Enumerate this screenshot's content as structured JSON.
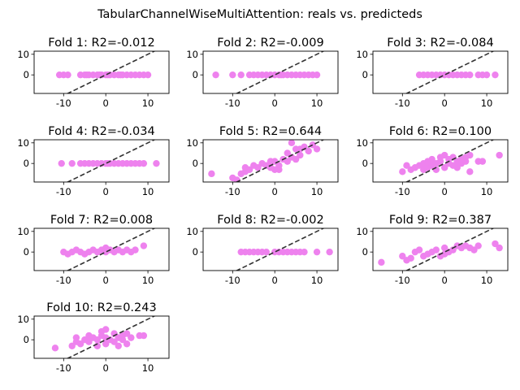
{
  "figure": {
    "title": "TabularChannelWiseMultiAttention: reals vs. predicteds",
    "point_color": "#ee82ee",
    "diagonal_color": "#333333"
  },
  "chart_data": [
    {
      "type": "scatter",
      "title": "Fold 1: R2=-0.012",
      "xlim": [
        -17,
        15
      ],
      "ylim": [
        -9,
        11.5
      ],
      "xticks": [
        "-10",
        "0",
        "10"
      ],
      "xtick_values": [
        -10,
        0,
        10
      ],
      "yticks": [
        "0",
        "10"
      ],
      "ytick_values": [
        0,
        10
      ],
      "diagonal": true,
      "points": [
        [
          -11,
          0
        ],
        [
          -10,
          0
        ],
        [
          -9,
          0
        ],
        [
          -6,
          0
        ],
        [
          -5,
          0
        ],
        [
          -4.5,
          0
        ],
        [
          -4,
          0
        ],
        [
          -3,
          0
        ],
        [
          -2,
          0
        ],
        [
          -1.5,
          0
        ],
        [
          -1,
          0
        ],
        [
          0,
          0
        ],
        [
          0.5,
          0
        ],
        [
          1,
          0
        ],
        [
          2,
          0
        ],
        [
          3,
          0
        ],
        [
          3.5,
          0
        ],
        [
          4,
          0
        ],
        [
          5,
          0
        ],
        [
          6,
          0
        ],
        [
          7,
          0
        ],
        [
          8,
          0
        ],
        [
          9,
          0
        ],
        [
          10,
          0
        ]
      ]
    },
    {
      "type": "scatter",
      "title": "Fold 2: R2=-0.009",
      "xlim": [
        -17,
        15
      ],
      "ylim": [
        -9,
        11.5
      ],
      "xticks": [
        "-10",
        "0",
        "10"
      ],
      "xtick_values": [
        -10,
        0,
        10
      ],
      "yticks": [
        "0",
        "10"
      ],
      "ytick_values": [
        0,
        10
      ],
      "diagonal": true,
      "points": [
        [
          -14,
          0
        ],
        [
          -10,
          0
        ],
        [
          -8,
          0
        ],
        [
          -6,
          0
        ],
        [
          -5,
          0
        ],
        [
          -4,
          0
        ],
        [
          -3,
          0
        ],
        [
          -2,
          0
        ],
        [
          -1,
          0
        ],
        [
          0,
          0
        ],
        [
          1,
          0
        ],
        [
          1.5,
          0
        ],
        [
          2,
          0
        ],
        [
          3,
          0
        ],
        [
          4,
          0
        ],
        [
          5,
          0
        ],
        [
          6,
          0
        ],
        [
          7,
          0
        ],
        [
          8,
          0
        ],
        [
          9,
          0
        ],
        [
          10,
          0
        ]
      ]
    },
    {
      "type": "scatter",
      "title": "Fold 3: R2=-0.084",
      "xlim": [
        -17,
        15
      ],
      "ylim": [
        -9,
        11.5
      ],
      "xticks": [
        "-10",
        "0",
        "10"
      ],
      "xtick_values": [
        -10,
        0,
        10
      ],
      "yticks": [
        "0",
        "10"
      ],
      "ytick_values": [
        0,
        10
      ],
      "diagonal": true,
      "points": [
        [
          -6,
          0
        ],
        [
          -5,
          0
        ],
        [
          -4,
          0
        ],
        [
          -3,
          0
        ],
        [
          -2,
          0
        ],
        [
          -1,
          0
        ],
        [
          0,
          0
        ],
        [
          1,
          0
        ],
        [
          2,
          0
        ],
        [
          3,
          0
        ],
        [
          4,
          0
        ],
        [
          5,
          0
        ],
        [
          6,
          0
        ],
        [
          8,
          0
        ],
        [
          9,
          0
        ],
        [
          10,
          0
        ],
        [
          12,
          0
        ]
      ]
    },
    {
      "type": "scatter",
      "title": "Fold 4: R2=-0.034",
      "xlim": [
        -17,
        15
      ],
      "ylim": [
        -9,
        11.5
      ],
      "xticks": [
        "-10",
        "0",
        "10"
      ],
      "xtick_values": [
        -10,
        0,
        10
      ],
      "yticks": [
        "0",
        "10"
      ],
      "ytick_values": [
        0,
        10
      ],
      "diagonal": true,
      "points": [
        [
          -10.5,
          0
        ],
        [
          -8,
          0
        ],
        [
          -6,
          0
        ],
        [
          -5,
          0
        ],
        [
          -4,
          0
        ],
        [
          -3,
          0
        ],
        [
          -2,
          0
        ],
        [
          -1,
          0
        ],
        [
          0,
          0
        ],
        [
          0.5,
          0
        ],
        [
          1,
          0
        ],
        [
          2,
          0
        ],
        [
          3,
          0
        ],
        [
          4,
          0
        ],
        [
          5,
          0
        ],
        [
          6,
          0
        ],
        [
          7,
          0
        ],
        [
          8,
          0
        ],
        [
          9,
          0
        ],
        [
          12,
          0
        ]
      ]
    },
    {
      "type": "scatter",
      "title": "Fold 5: R2=0.644",
      "xlim": [
        -17,
        15
      ],
      "ylim": [
        -9,
        11.5
      ],
      "xticks": [
        "-10",
        "0",
        "10"
      ],
      "xtick_values": [
        -10,
        0,
        10
      ],
      "yticks": [
        "0",
        "10"
      ],
      "ytick_values": [
        0,
        10
      ],
      "diagonal": true,
      "points": [
        [
          -15,
          -5
        ],
        [
          -10,
          -7
        ],
        [
          -9,
          -8
        ],
        [
          -8,
          -5
        ],
        [
          -7,
          -4
        ],
        [
          -7,
          -2
        ],
        [
          -6,
          -3
        ],
        [
          -5,
          -1
        ],
        [
          -4,
          -2
        ],
        [
          -3,
          0
        ],
        [
          -2,
          -1
        ],
        [
          -1,
          1
        ],
        [
          -1,
          -2
        ],
        [
          0,
          -3
        ],
        [
          0,
          1
        ],
        [
          1,
          -1
        ],
        [
          1,
          -3
        ],
        [
          2,
          2
        ],
        [
          3,
          1
        ],
        [
          3,
          5
        ],
        [
          4,
          3
        ],
        [
          4,
          10
        ],
        [
          5,
          7
        ],
        [
          5,
          2
        ],
        [
          6,
          4
        ],
        [
          6,
          7
        ],
        [
          7,
          8
        ],
        [
          8,
          6
        ],
        [
          9,
          9
        ],
        [
          10,
          7
        ]
      ]
    },
    {
      "type": "scatter",
      "title": "Fold 6: R2=0.100",
      "xlim": [
        -17,
        15
      ],
      "ylim": [
        -9,
        11.5
      ],
      "xticks": [
        "-10",
        "0",
        "10"
      ],
      "xtick_values": [
        -10,
        0,
        10
      ],
      "yticks": [
        "0",
        "10"
      ],
      "ytick_values": [
        0,
        10
      ],
      "diagonal": true,
      "points": [
        [
          -10,
          -4
        ],
        [
          -9,
          -1
        ],
        [
          -8,
          -3
        ],
        [
          -7,
          -2
        ],
        [
          -6,
          -1
        ],
        [
          -5,
          0
        ],
        [
          -5,
          -3
        ],
        [
          -4,
          1
        ],
        [
          -4,
          -2
        ],
        [
          -3,
          -1
        ],
        [
          -3,
          2
        ],
        [
          -2,
          0
        ],
        [
          -2,
          -3
        ],
        [
          -1,
          3
        ],
        [
          -1,
          1
        ],
        [
          0,
          -2
        ],
        [
          0,
          4
        ],
        [
          1,
          2
        ],
        [
          1,
          0
        ],
        [
          2,
          3
        ],
        [
          2,
          -1
        ],
        [
          3,
          1
        ],
        [
          3,
          -2
        ],
        [
          4,
          2
        ],
        [
          4,
          0
        ],
        [
          5,
          3
        ],
        [
          5,
          1
        ],
        [
          6,
          4
        ],
        [
          6,
          -4
        ],
        [
          8,
          1
        ],
        [
          9,
          1
        ],
        [
          13,
          4
        ]
      ]
    },
    {
      "type": "scatter",
      "title": "Fold 7: R2=0.008",
      "xlim": [
        -17,
        15
      ],
      "ylim": [
        -9,
        11.5
      ],
      "xticks": [
        "-10",
        "0",
        "10"
      ],
      "xtick_values": [
        -10,
        0,
        10
      ],
      "yticks": [
        "0",
        "10"
      ],
      "ytick_values": [
        0,
        10
      ],
      "diagonal": true,
      "points": [
        [
          -10,
          0
        ],
        [
          -9,
          -1
        ],
        [
          -8,
          0
        ],
        [
          -7,
          1
        ],
        [
          -6,
          0
        ],
        [
          -5,
          -1
        ],
        [
          -4,
          0
        ],
        [
          -3,
          1
        ],
        [
          -2,
          0
        ],
        [
          -1,
          1
        ],
        [
          0,
          0
        ],
        [
          0,
          2
        ],
        [
          1,
          1
        ],
        [
          2,
          0
        ],
        [
          3,
          1
        ],
        [
          4,
          0
        ],
        [
          5,
          1
        ],
        [
          6,
          0
        ],
        [
          7,
          1
        ],
        [
          9,
          3
        ]
      ]
    },
    {
      "type": "scatter",
      "title": "Fold 8: R2=-0.002",
      "xlim": [
        -17,
        15
      ],
      "ylim": [
        -9,
        11.5
      ],
      "xticks": [
        "-10",
        "0",
        "10"
      ],
      "xtick_values": [
        -10,
        0,
        10
      ],
      "yticks": [
        "0",
        "10"
      ],
      "ytick_values": [
        0,
        10
      ],
      "diagonal": true,
      "points": [
        [
          -8,
          0
        ],
        [
          -7,
          0
        ],
        [
          -6,
          0
        ],
        [
          -5,
          0
        ],
        [
          -4,
          0
        ],
        [
          -3,
          0
        ],
        [
          -2,
          0
        ],
        [
          0,
          0
        ],
        [
          1,
          0
        ],
        [
          2,
          0
        ],
        [
          3,
          0
        ],
        [
          4,
          0
        ],
        [
          5,
          0
        ],
        [
          6,
          0
        ],
        [
          7,
          0
        ],
        [
          10,
          0
        ],
        [
          13,
          0
        ]
      ]
    },
    {
      "type": "scatter",
      "title": "Fold 9: R2=0.387",
      "xlim": [
        -17,
        15
      ],
      "ylim": [
        -9,
        11.5
      ],
      "xticks": [
        "-10",
        "0",
        "10"
      ],
      "xtick_values": [
        -10,
        0,
        10
      ],
      "yticks": [
        "0",
        "10"
      ],
      "ytick_values": [
        0,
        10
      ],
      "diagonal": true,
      "points": [
        [
          -15,
          -5
        ],
        [
          -10,
          -2
        ],
        [
          -9,
          -4
        ],
        [
          -8,
          -3
        ],
        [
          -7,
          0
        ],
        [
          -6,
          1
        ],
        [
          -5,
          -2
        ],
        [
          -4,
          -1
        ],
        [
          -3,
          0
        ],
        [
          -2,
          1
        ],
        [
          -1,
          -2
        ],
        [
          0,
          -1
        ],
        [
          0,
          2
        ],
        [
          1,
          0
        ],
        [
          2,
          1
        ],
        [
          3,
          3
        ],
        [
          4,
          2
        ],
        [
          5,
          3
        ],
        [
          6,
          2
        ],
        [
          7,
          1
        ],
        [
          8,
          3
        ],
        [
          12,
          4
        ],
        [
          13,
          2
        ]
      ]
    },
    {
      "type": "scatter",
      "title": "Fold 10: R2=0.243",
      "xlim": [
        -17,
        15
      ],
      "ylim": [
        -9,
        11.5
      ],
      "xticks": [
        "-10",
        "0",
        "10"
      ],
      "xtick_values": [
        -10,
        0,
        10
      ],
      "yticks": [
        "0",
        "10"
      ],
      "ytick_values": [
        0,
        10
      ],
      "diagonal": true,
      "points": [
        [
          -12,
          -4
        ],
        [
          -8,
          -3
        ],
        [
          -7,
          -1
        ],
        [
          -7,
          1
        ],
        [
          -6,
          -2
        ],
        [
          -5,
          0
        ],
        [
          -4,
          -1
        ],
        [
          -4,
          2
        ],
        [
          -3,
          1
        ],
        [
          -2,
          -3
        ],
        [
          -2,
          0
        ],
        [
          -1,
          2
        ],
        [
          -1,
          4
        ],
        [
          0,
          1
        ],
        [
          0,
          5
        ],
        [
          0,
          -2
        ],
        [
          1,
          0
        ],
        [
          2,
          3
        ],
        [
          2,
          -1
        ],
        [
          3,
          1
        ],
        [
          3,
          -3
        ],
        [
          4,
          2
        ],
        [
          4,
          0
        ],
        [
          5,
          3
        ],
        [
          5,
          -2
        ],
        [
          6,
          1
        ],
        [
          8,
          2
        ],
        [
          9,
          2
        ]
      ]
    }
  ]
}
